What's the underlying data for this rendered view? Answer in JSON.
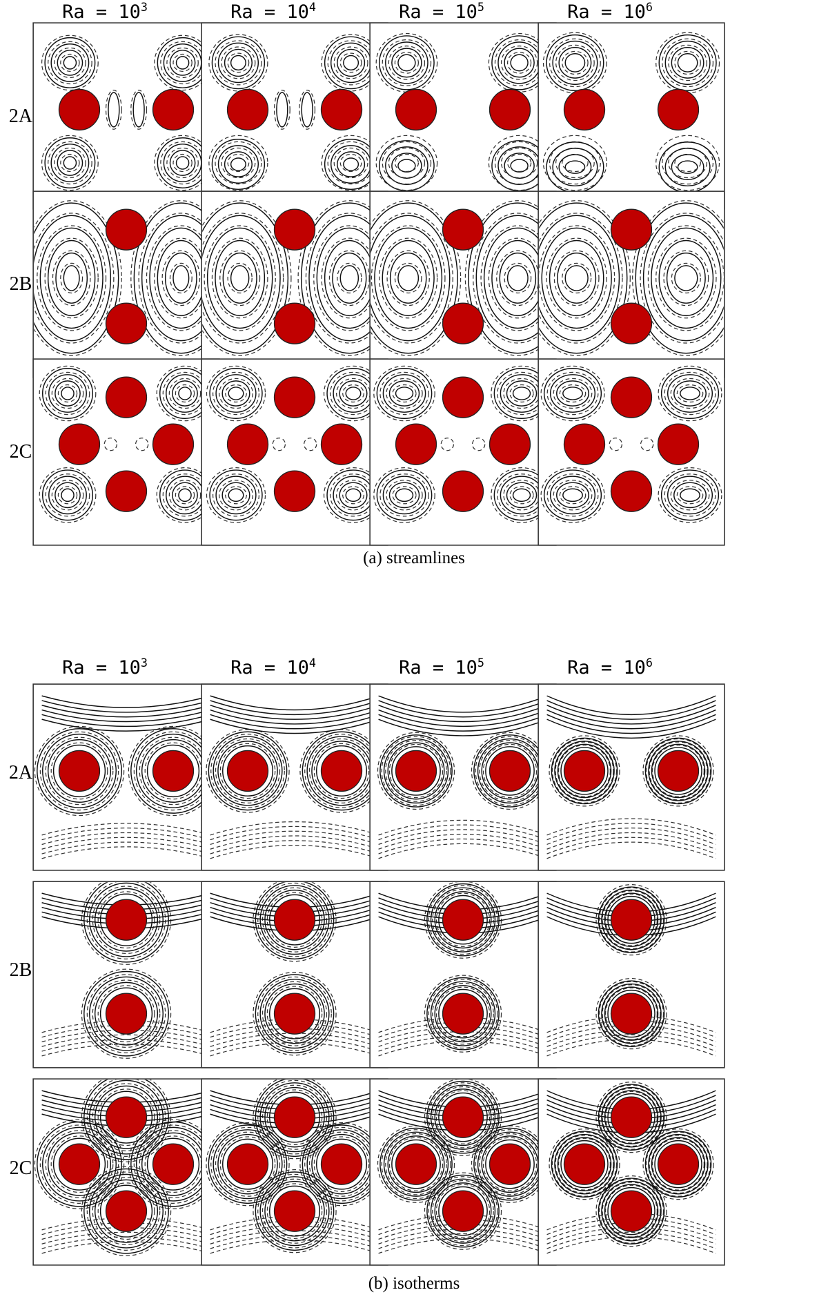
{
  "sections": [
    {
      "caption": "(a) streamlines",
      "kind": "streamlines",
      "col_headers": [
        {
          "base": "Ra = 10",
          "exp": "3"
        },
        {
          "base": "Ra = 10",
          "exp": "4"
        },
        {
          "base": "Ra = 10",
          "exp": "5"
        },
        {
          "base": "Ra = 10",
          "exp": "6"
        }
      ],
      "row_labels": [
        "2A",
        "2B",
        "2C"
      ]
    },
    {
      "caption": "(b) isotherms",
      "kind": "isotherms",
      "col_headers": [
        {
          "base": "Ra = 10",
          "exp": "3"
        },
        {
          "base": "Ra = 10",
          "exp": "4"
        },
        {
          "base": "Ra = 10",
          "exp": "5"
        },
        {
          "base": "Ra = 10",
          "exp": "6"
        }
      ],
      "row_labels": [
        "2A",
        "2B",
        "2C"
      ]
    }
  ],
  "colors": {
    "cylinder": "#c00000",
    "line": "#111111"
  }
}
